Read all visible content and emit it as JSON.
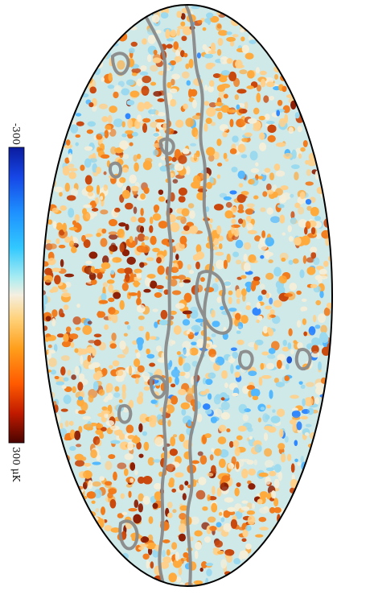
{
  "colorbar": {
    "min_label": "-300",
    "max_label": "300 μK",
    "stops": [
      "#0b1c9e",
      "#1646e6",
      "#1e90ff",
      "#32c8ff",
      "#7fe6f0",
      "#f5efe0",
      "#ffd27a",
      "#ff9f1c",
      "#ff5a00",
      "#c01a00",
      "#4a0400"
    ]
  },
  "map": {
    "projection": "mollweide",
    "outline_color": "#000000",
    "mask_contour_color": "#8a8a8a",
    "noise_palette": [
      "#1c57d6",
      "#2e86ff",
      "#52b8ff",
      "#9ad9ef",
      "#f3eed9",
      "#ffd08a",
      "#ffaa3c",
      "#f27a1a",
      "#c9480d",
      "#8c1f05"
    ]
  }
}
